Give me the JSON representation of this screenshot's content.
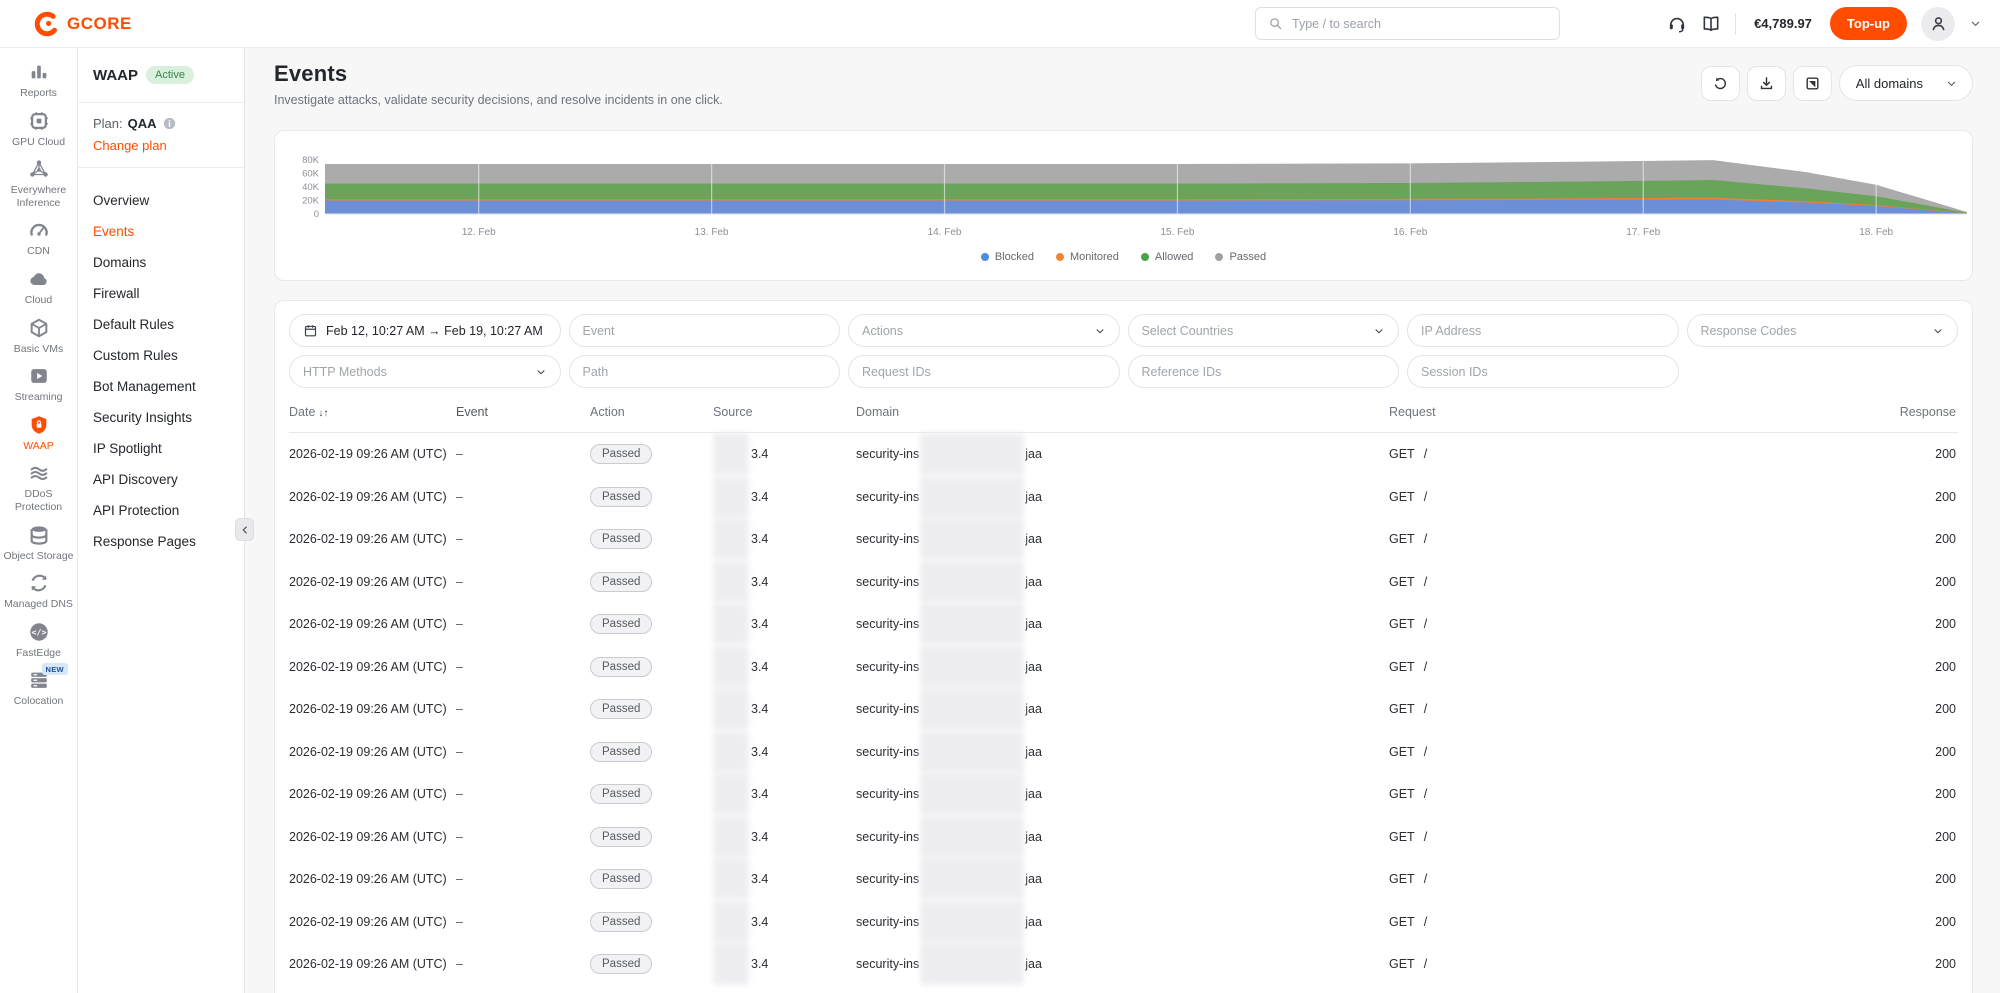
{
  "brand": {
    "logo_text": "GCORE",
    "color": "#ff4c00"
  },
  "topbar": {
    "search_placeholder": "Type / to search",
    "balance": "€4,789.97",
    "topup_label": "Top-up",
    "icons": [
      "support-headset-icon",
      "docs-book-icon",
      "user-avatar-icon",
      "chevron-down-icon"
    ]
  },
  "rail": {
    "items": [
      {
        "label": "Reports",
        "icon": "reports-icon",
        "active": false
      },
      {
        "label": "GPU Cloud",
        "icon": "gpu-cloud-icon",
        "active": false
      },
      {
        "label": "Everywhere Inference",
        "icon": "everywhere-inference-icon",
        "active": false
      },
      {
        "label": "CDN",
        "icon": "cdn-icon",
        "active": false
      },
      {
        "label": "Cloud",
        "icon": "cloud-icon",
        "active": false
      },
      {
        "label": "Basic VMs",
        "icon": "basic-vms-icon",
        "active": false
      },
      {
        "label": "Streaming",
        "icon": "streaming-icon",
        "active": false
      },
      {
        "label": "WAAP",
        "icon": "waap-shield-icon",
        "active": true
      },
      {
        "label": "DDoS Protection",
        "icon": "ddos-protection-icon",
        "active": false
      },
      {
        "label": "Object Storage",
        "icon": "object-storage-icon",
        "active": false
      },
      {
        "label": "Managed DNS",
        "icon": "managed-dns-icon",
        "active": false
      },
      {
        "label": "FastEdge",
        "icon": "fastedge-icon",
        "active": false
      },
      {
        "label": "Colocation",
        "icon": "colocation-icon",
        "active": false,
        "badge": "NEW"
      }
    ]
  },
  "subnav": {
    "product": "WAAP",
    "status_badge": "Active",
    "plan_label": "Plan:",
    "plan_value": "QAA",
    "change_plan": "Change plan",
    "items": [
      {
        "label": "Overview",
        "active": false
      },
      {
        "label": "Events",
        "active": true
      },
      {
        "label": "Domains",
        "active": false
      },
      {
        "label": "Firewall",
        "active": false
      },
      {
        "label": "Default Rules",
        "active": false
      },
      {
        "label": "Custom Rules",
        "active": false
      },
      {
        "label": "Bot Management",
        "active": false
      },
      {
        "label": "Security Insights",
        "active": false
      },
      {
        "label": "IP Spotlight",
        "active": false
      },
      {
        "label": "API Discovery",
        "active": false
      },
      {
        "label": "API Protection",
        "active": false
      },
      {
        "label": "Response Pages",
        "active": false
      }
    ]
  },
  "page": {
    "title": "Events",
    "subtitle": "Investigate attacks, validate security decisions, and resolve incidents in one click.",
    "domain_filter": "All domains",
    "toolbar_icons": [
      "refresh-icon",
      "download-icon",
      "export-icon"
    ]
  },
  "chart_data": {
    "type": "area",
    "stacked": true,
    "title": "",
    "xlabel": "",
    "ylabel": "",
    "x_unit": "day of February (2026)",
    "x": [
      11.34,
      12,
      13,
      14,
      15,
      16,
      16.8,
      17.3,
      17.7,
      18,
      18.39
    ],
    "series": [
      {
        "name": "Blocked",
        "color": "#6d8fd8",
        "legend_color": "#4a8de2",
        "values": [
          20000,
          20000,
          20000,
          20000,
          20000,
          20500,
          21000,
          21500,
          17000,
          12000,
          800
        ]
      },
      {
        "name": "Monitored",
        "color": "#ed8132",
        "legend_color": "#f18434",
        "values": [
          2000,
          2000,
          2000,
          2000,
          2000,
          2000,
          2300,
          2800,
          2000,
          1300,
          200
        ]
      },
      {
        "name": "Allowed",
        "color": "#6aa45a",
        "legend_color": "#4da14b",
        "values": [
          23000,
          23000,
          23000,
          23000,
          23000,
          23500,
          25000,
          26000,
          19000,
          13000,
          900
        ]
      },
      {
        "name": "Passed",
        "color": "#ababab",
        "legend_color": "#9f9fa3",
        "values": [
          29000,
          29000,
          29000,
          29000,
          29000,
          29000,
          29500,
          29500,
          24000,
          17000,
          1100
        ]
      }
    ],
    "xticks": [
      {
        "v": 12,
        "label": "12. Feb"
      },
      {
        "v": 13,
        "label": "13. Feb"
      },
      {
        "v": 14,
        "label": "14. Feb"
      },
      {
        "v": 15,
        "label": "15. Feb"
      },
      {
        "v": 16,
        "label": "16. Feb"
      },
      {
        "v": 17,
        "label": "17. Feb"
      },
      {
        "v": 18,
        "label": "18. Feb"
      }
    ],
    "yticks": [
      {
        "v": 0,
        "label": "0"
      },
      {
        "v": 20000,
        "label": "20K"
      },
      {
        "v": 40000,
        "label": "40K"
      },
      {
        "v": 60000,
        "label": "60K"
      },
      {
        "v": 80000,
        "label": "80K"
      }
    ],
    "ylim": [
      0,
      80000
    ],
    "grid": "white vertical lines at day ticks",
    "legend_position": "bottom-center"
  },
  "filters": {
    "row1": [
      {
        "type": "date-range",
        "name": "date-range-filter",
        "value": "Feb 12, 10:27 AM → Feb 19, 10:27 AM"
      },
      {
        "type": "input",
        "name": "event-filter",
        "placeholder": "Event"
      },
      {
        "type": "select",
        "name": "actions-filter",
        "placeholder": "Actions"
      },
      {
        "type": "select",
        "name": "countries-filter",
        "placeholder": "Select Countries"
      },
      {
        "type": "input",
        "name": "ip-address-filter",
        "placeholder": "IP Address"
      },
      {
        "type": "select",
        "name": "response-codes-filter",
        "placeholder": "Response Codes"
      }
    ],
    "row2": [
      {
        "type": "select",
        "name": "http-methods-filter",
        "placeholder": "HTTP Methods"
      },
      {
        "type": "input",
        "name": "path-filter",
        "placeholder": "Path"
      },
      {
        "type": "input",
        "name": "request-ids-filter",
        "placeholder": "Request IDs"
      },
      {
        "type": "input",
        "name": "reference-ids-filter",
        "placeholder": "Reference IDs"
      },
      {
        "type": "input",
        "name": "session-ids-filter",
        "placeholder": "Session IDs"
      }
    ]
  },
  "table": {
    "columns": [
      "Date",
      "Event",
      "Action",
      "Source",
      "Domain",
      "Request",
      "Response"
    ],
    "sorted_column": "Date",
    "sort_icon": "↓↑",
    "row_count": 13,
    "row_template": {
      "date": "2026-02-19 09:26 AM (UTC)",
      "event": "–",
      "action": "Passed",
      "source_redacted": true,
      "source_visible": "3.4",
      "domain_prefix": "security-ins",
      "domain_redacted": true,
      "domain_suffix": "jaa",
      "request_method": "GET",
      "request_path": "/",
      "response": "200"
    }
  }
}
